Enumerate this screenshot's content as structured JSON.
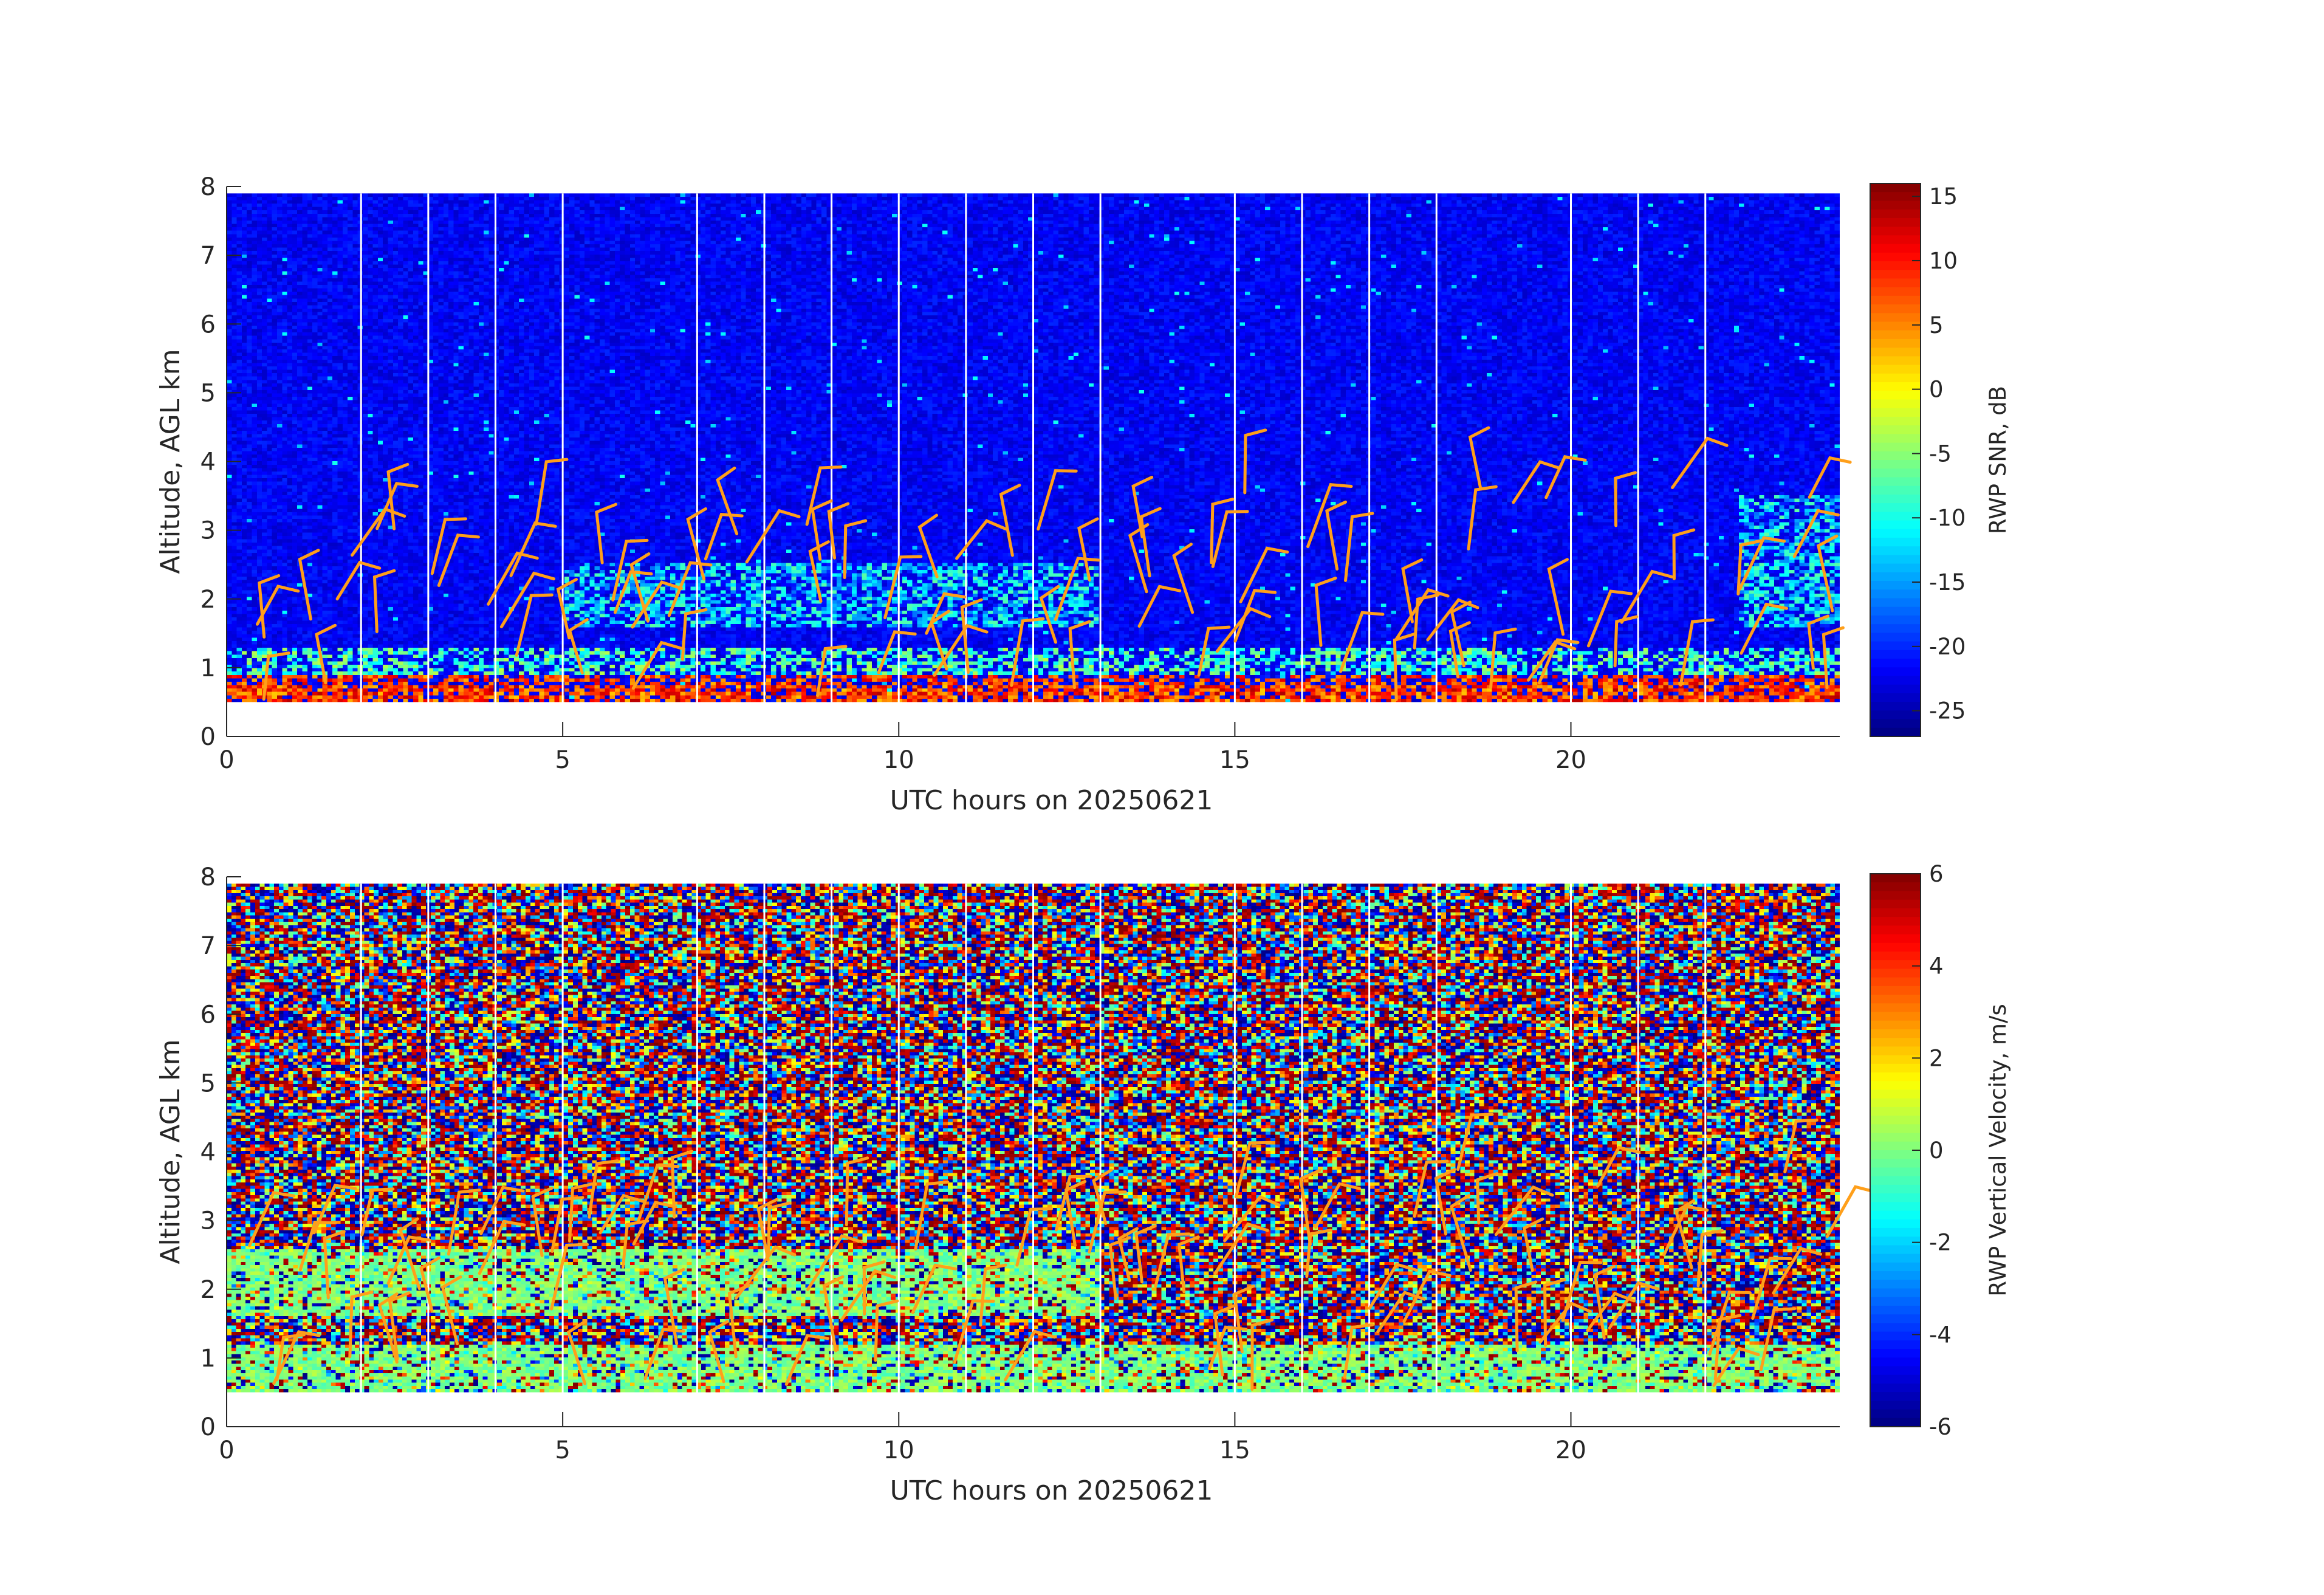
{
  "colors": {
    "barb": "#ff9f1a",
    "gap_line": "#ffffff",
    "axis": "#262626",
    "colormap": [
      "#00007f",
      "#0000ff",
      "#007fff",
      "#00ffff",
      "#7fff7f",
      "#ffff00",
      "#ff7f00",
      "#ff0000",
      "#7f0000"
    ]
  },
  "chart_data": [
    {
      "type": "heatmap",
      "xlabel": "UTC hours on 20250621",
      "ylabel": "Altitude, AGL km",
      "xlim": [
        0,
        24
      ],
      "ylim": [
        0,
        8
      ],
      "xticks": [
        "0",
        "5",
        "10",
        "15",
        "20"
      ],
      "yticks": [
        "0",
        "1",
        "2",
        "3",
        "4",
        "5",
        "6",
        "7",
        "8"
      ],
      "data_range": {
        "time_hours": [
          0,
          24
        ],
        "altitude_km": [
          0.5,
          7.9
        ]
      },
      "colorbar": {
        "label": "RWP SNR, dB",
        "range": [
          -27,
          16
        ],
        "ticks": [
          "15",
          "10",
          "5",
          "0",
          "-5",
          "-10",
          "-15",
          "-20",
          "-25"
        ]
      },
      "colormap": "jet",
      "gap_lines_hours": [
        2,
        3,
        4,
        5,
        7,
        8,
        9,
        10,
        11,
        12,
        13,
        15,
        16,
        17,
        18,
        20,
        21,
        22
      ],
      "background_level": -22,
      "features": [
        {
          "description": "surface layer",
          "altitude_km": [
            0.5,
            0.9
          ],
          "level": 8
        },
        {
          "description": "layer near 1 km",
          "altitude_km": [
            0.9,
            1.3
          ],
          "level": -8
        },
        {
          "description": "elevated layer",
          "time_hours": [
            5,
            13
          ],
          "altitude_km": [
            1.6,
            2.5
          ],
          "level": -12
        },
        {
          "description": "elevated layer",
          "time_hours": [
            22.5,
            24
          ],
          "altitude_km": [
            1.6,
            3.5
          ],
          "level": -12
        }
      ],
      "wind_barbs": {
        "color": "barb",
        "columns_hours": [
          0,
          1,
          2,
          3,
          4,
          5,
          6,
          7,
          8,
          9,
          10,
          11,
          12,
          13,
          14,
          15,
          16,
          17,
          18,
          19,
          20,
          21,
          22,
          23
        ],
        "altitude_km": [
          0.5,
          4.2
        ]
      }
    },
    {
      "type": "heatmap",
      "xlabel": "UTC hours on 20250621",
      "ylabel": "Altitude, AGL km",
      "xlim": [
        0,
        24
      ],
      "ylim": [
        0,
        8
      ],
      "xticks": [
        "0",
        "5",
        "10",
        "15",
        "20"
      ],
      "yticks": [
        "0",
        "1",
        "2",
        "3",
        "4",
        "5",
        "6",
        "7",
        "8"
      ],
      "data_range": {
        "time_hours": [
          0,
          24
        ],
        "altitude_km": [
          0.5,
          7.9
        ]
      },
      "colorbar": {
        "label": "RWP Vertical Velocity, m/s",
        "range": [
          -6,
          6
        ],
        "ticks": [
          "6",
          "4",
          "2",
          "0",
          "-2",
          "-4",
          "-6"
        ]
      },
      "colormap": "jet",
      "gap_lines_hours": [
        2,
        3,
        4,
        5,
        7,
        8,
        9,
        10,
        11,
        12,
        13,
        15,
        16,
        17,
        18,
        20,
        21,
        22
      ],
      "background_level": "noise (-6 to 6)",
      "features": [
        {
          "description": "near-zero velocity layer",
          "altitude_km": [
            0.5,
            1.2
          ],
          "level": 0
        },
        {
          "description": "near-zero velocity layer",
          "time_hours": [
            0,
            13
          ],
          "altitude_km": [
            1.6,
            2.6
          ],
          "level": 0
        }
      ],
      "wind_barbs": {
        "color": "barb",
        "columns_hours": [
          0,
          1,
          2,
          3,
          4,
          5,
          6,
          7,
          8,
          9,
          10,
          11,
          12,
          13,
          14,
          15,
          16,
          17,
          18,
          19,
          20,
          21,
          22,
          23
        ],
        "altitude_km": [
          0.5,
          4.2
        ]
      }
    }
  ]
}
